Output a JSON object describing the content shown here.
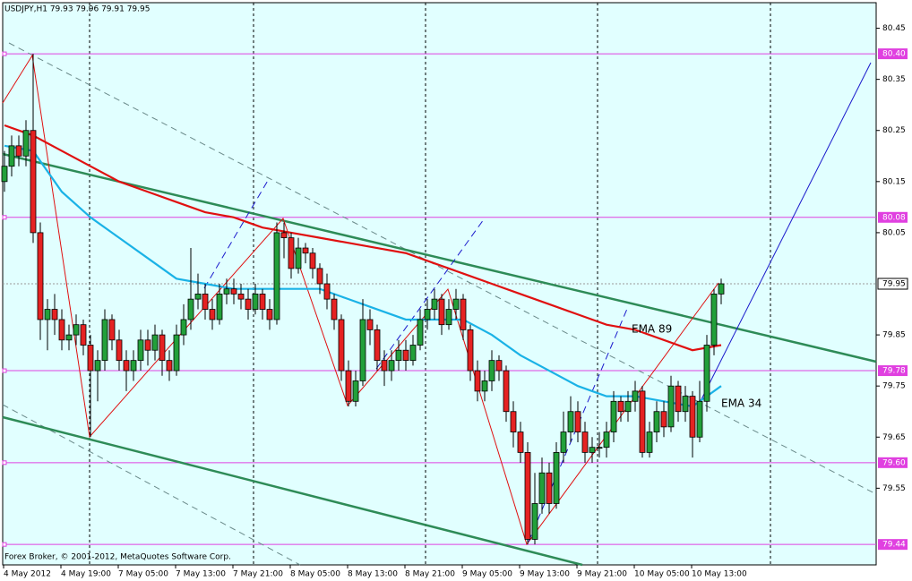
{
  "chart_data": {
    "type": "candlestick",
    "title": "USDJPY,H1  79.93 79.96 79.91 79.95",
    "footer": "Forex Broker, © 2001-2012, MetaQuotes Software Corp.",
    "categories": [
      "4 May 2012",
      null,
      null,
      null,
      null,
      null,
      null,
      null,
      "4 May 19:00",
      null,
      null,
      null,
      null,
      null,
      null,
      null,
      "7 May 05:00",
      null,
      null,
      null,
      null,
      null,
      null,
      null,
      "7 May 13:00",
      null,
      null,
      null,
      null,
      null,
      null,
      null,
      "7 May 21:00",
      null,
      null,
      null,
      null,
      null,
      null,
      null,
      "8 May 05:00",
      null,
      null,
      null,
      null,
      null,
      null,
      null,
      "8 May 13:00",
      null,
      null,
      null,
      null,
      null,
      null,
      null,
      "8 May 21:00",
      null,
      null,
      null,
      null,
      null,
      null,
      null,
      "9 May 05:00",
      null,
      null,
      null,
      null,
      null,
      null,
      null,
      "9 May 13:00",
      null,
      null,
      null,
      null,
      null,
      null,
      null,
      "9 May 21:00",
      null,
      null,
      null,
      null,
      null,
      null,
      null,
      "10 May 05:00",
      null,
      null,
      null,
      null,
      null,
      null,
      null,
      "10 May 13:00",
      null,
      null,
      null,
      null
    ],
    "open": [
      80.15,
      80.18,
      80.22,
      80.2,
      80.25,
      80.05,
      79.88,
      79.9,
      79.88,
      79.84,
      79.85,
      79.87,
      79.83,
      79.78,
      79.8,
      79.88,
      79.84,
      79.8,
      79.78,
      79.8,
      79.84,
      79.82,
      79.85,
      79.8,
      79.78,
      79.85,
      79.88,
      79.92,
      79.93,
      79.9,
      79.88,
      79.93,
      79.94,
      79.93,
      79.92,
      79.9,
      79.93,
      79.9,
      79.88,
      80.05,
      80.04,
      79.98,
      80.02,
      80.01,
      79.98,
      79.95,
      79.92,
      79.88,
      79.78,
      79.72,
      79.76,
      79.88,
      79.86,
      79.8,
      79.78,
      79.8,
      79.82,
      79.8,
      79.83,
      79.88,
      79.9,
      79.92,
      79.87,
      79.9,
      79.92,
      79.86,
      79.78,
      79.74,
      79.76,
      79.8,
      79.78,
      79.7,
      79.66,
      79.62,
      79.45,
      79.52,
      79.58,
      79.52,
      79.62,
      79.66,
      79.7,
      79.66,
      79.62,
      79.63,
      79.63,
      79.66,
      79.72,
      79.7,
      79.72,
      79.74,
      79.62,
      79.66,
      79.7,
      79.67,
      79.75,
      79.7,
      79.73,
      79.65,
      79.72,
      79.83,
      79.93
    ],
    "high": [
      80.21,
      80.24,
      80.24,
      80.27,
      80.4,
      80.07,
      79.92,
      79.93,
      79.9,
      79.87,
      79.89,
      79.88,
      79.85,
      79.82,
      79.9,
      79.89,
      79.86,
      79.82,
      79.82,
      79.86,
      79.86,
      79.87,
      79.86,
      79.82,
      79.87,
      79.91,
      80.02,
      79.97,
      79.95,
      79.92,
      79.95,
      79.96,
      79.96,
      79.95,
      79.94,
      79.95,
      79.94,
      79.92,
      80.07,
      80.07,
      80.05,
      80.04,
      80.03,
      80.02,
      79.99,
      79.97,
      79.93,
      79.89,
      79.8,
      79.78,
      79.92,
      79.9,
      79.87,
      79.82,
      79.82,
      79.84,
      79.84,
      79.85,
      79.9,
      79.92,
      79.94,
      79.93,
      79.92,
      79.94,
      79.93,
      79.87,
      79.8,
      79.78,
      79.82,
      79.81,
      79.79,
      79.72,
      79.68,
      79.64,
      79.58,
      79.61,
      79.6,
      79.64,
      79.7,
      79.73,
      79.72,
      79.68,
      79.65,
      79.66,
      79.68,
      79.74,
      79.73,
      79.74,
      79.76,
      79.75,
      79.68,
      79.72,
      79.72,
      79.77,
      79.76,
      79.75,
      79.74,
      79.76,
      79.85,
      79.94,
      79.96
    ],
    "low": [
      80.13,
      80.16,
      80.18,
      80.18,
      80.03,
      79.84,
      79.82,
      79.85,
      79.82,
      79.82,
      79.83,
      79.81,
      79.65,
      79.72,
      79.78,
      79.82,
      79.78,
      79.74,
      79.76,
      79.78,
      79.79,
      79.8,
      79.77,
      79.76,
      79.77,
      79.83,
      79.86,
      79.9,
      79.88,
      79.86,
      79.87,
      79.91,
      79.91,
      79.9,
      79.88,
      79.89,
      79.88,
      79.86,
      79.87,
      80.0,
      79.96,
      79.97,
      79.99,
      79.96,
      79.93,
      79.9,
      79.86,
      79.76,
      79.71,
      79.71,
      79.75,
      79.83,
      79.78,
      79.75,
      79.76,
      79.78,
      79.78,
      79.79,
      79.82,
      79.86,
      79.88,
      79.85,
      79.86,
      79.88,
      79.84,
      79.76,
      79.72,
      79.72,
      79.74,
      79.76,
      79.68,
      79.63,
      79.6,
      79.44,
      79.44,
      79.5,
      79.5,
      79.51,
      79.6,
      79.64,
      79.64,
      79.6,
      79.6,
      79.61,
      79.61,
      79.64,
      79.68,
      79.68,
      79.7,
      79.61,
      79.61,
      79.64,
      79.65,
      79.66,
      79.68,
      79.68,
      79.61,
      79.64,
      79.7,
      79.81,
      79.91
    ],
    "close": [
      80.18,
      80.22,
      80.2,
      80.25,
      80.05,
      79.88,
      79.9,
      79.88,
      79.84,
      79.85,
      79.87,
      79.83,
      79.78,
      79.8,
      79.88,
      79.84,
      79.8,
      79.78,
      79.8,
      79.84,
      79.82,
      79.85,
      79.8,
      79.78,
      79.85,
      79.88,
      79.92,
      79.93,
      79.9,
      79.88,
      79.93,
      79.94,
      79.93,
      79.92,
      79.9,
      79.93,
      79.9,
      79.88,
      80.05,
      80.04,
      79.98,
      80.02,
      80.01,
      79.98,
      79.95,
      79.92,
      79.88,
      79.78,
      79.72,
      79.76,
      79.88,
      79.86,
      79.8,
      79.78,
      79.8,
      79.82,
      79.8,
      79.83,
      79.88,
      79.9,
      79.92,
      79.87,
      79.9,
      79.92,
      79.86,
      79.78,
      79.74,
      79.76,
      79.8,
      79.78,
      79.7,
      79.66,
      79.62,
      79.45,
      79.52,
      79.58,
      79.52,
      79.62,
      79.66,
      79.7,
      79.66,
      79.62,
      79.63,
      79.63,
      79.66,
      79.72,
      79.7,
      79.72,
      79.74,
      79.62,
      79.66,
      79.7,
      79.67,
      79.75,
      79.7,
      79.73,
      79.65,
      79.72,
      79.83,
      79.93,
      79.95
    ],
    "up_color": "#22a03a",
    "down_color": "#e52222",
    "ylim": [
      79.4,
      80.5
    ],
    "yticks": [
      80.45,
      80.35,
      80.25,
      80.15,
      80.05,
      79.85,
      79.75,
      79.65,
      79.55
    ],
    "series": [
      {
        "name": "EMA 89",
        "color": "#e01010",
        "x": [
          0,
          4,
          8,
          12,
          16,
          20,
          24,
          28,
          32,
          36,
          40,
          44,
          48,
          52,
          56,
          60,
          64,
          68,
          72,
          76,
          80,
          84,
          88,
          92,
          96,
          100
        ],
        "values": [
          80.26,
          80.24,
          80.21,
          80.18,
          80.15,
          80.13,
          80.11,
          80.09,
          80.08,
          80.06,
          80.05,
          80.04,
          80.03,
          80.02,
          80.01,
          79.99,
          79.97,
          79.95,
          79.93,
          79.91,
          79.89,
          79.87,
          79.86,
          79.84,
          79.82,
          79.83
        ]
      },
      {
        "name": "EMA 34",
        "color": "#1ab2e6",
        "x": [
          0,
          4,
          8,
          12,
          16,
          20,
          24,
          28,
          32,
          36,
          40,
          44,
          48,
          52,
          56,
          60,
          64,
          68,
          72,
          76,
          80,
          84,
          88,
          92,
          96,
          100
        ],
        "values": [
          80.22,
          80.21,
          80.13,
          80.08,
          80.04,
          80.0,
          79.96,
          79.95,
          79.94,
          79.94,
          79.94,
          79.94,
          79.92,
          79.9,
          79.88,
          79.88,
          79.88,
          79.85,
          79.81,
          79.78,
          79.75,
          79.73,
          79.73,
          79.72,
          79.71,
          79.75
        ]
      }
    ],
    "levels": [
      {
        "value": 80.4,
        "label": "80.40"
      },
      80.08,
      79.78,
      {
        "value": 79.6,
        "label": "79.60"
      },
      79.44
    ],
    "level_color": "#e040e0",
    "bid": 79.95
  }
}
